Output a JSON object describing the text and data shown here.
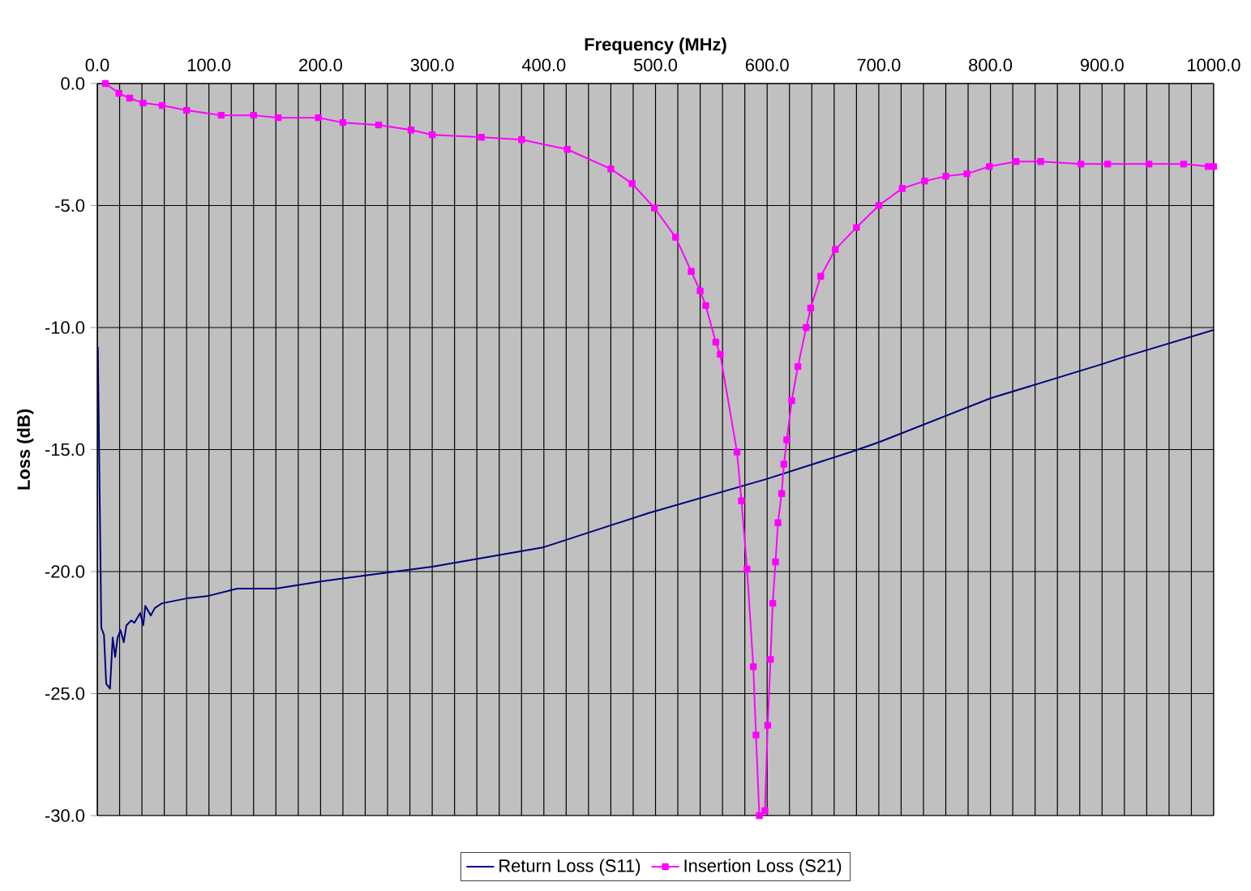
{
  "chart_data": {
    "type": "line",
    "xlabel": "Frequency (MHz)",
    "ylabel": "Loss (dB)",
    "xlim": [
      0,
      1000
    ],
    "ylim": [
      -30,
      0
    ],
    "xticks": [
      {
        "value": 0,
        "label": "0.0"
      },
      {
        "value": 20,
        "label": null
      },
      {
        "value": 40,
        "label": null
      },
      {
        "value": 60,
        "label": null
      },
      {
        "value": 80,
        "label": null
      },
      {
        "value": 100,
        "label": "100.0"
      },
      {
        "value": 120,
        "label": null
      },
      {
        "value": 140,
        "label": null
      },
      {
        "value": 160,
        "label": null
      },
      {
        "value": 180,
        "label": null
      },
      {
        "value": 200,
        "label": "200.0"
      },
      {
        "value": 220,
        "label": null
      },
      {
        "value": 240,
        "label": null
      },
      {
        "value": 260,
        "label": null
      },
      {
        "value": 280,
        "label": null
      },
      {
        "value": 300,
        "label": "300.0"
      },
      {
        "value": 320,
        "label": null
      },
      {
        "value": 340,
        "label": null
      },
      {
        "value": 360,
        "label": null
      },
      {
        "value": 380,
        "label": null
      },
      {
        "value": 400,
        "label": "400.0"
      },
      {
        "value": 420,
        "label": null
      },
      {
        "value": 440,
        "label": null
      },
      {
        "value": 460,
        "label": null
      },
      {
        "value": 480,
        "label": null
      },
      {
        "value": 500,
        "label": "500.0"
      },
      {
        "value": 520,
        "label": null
      },
      {
        "value": 540,
        "label": null
      },
      {
        "value": 560,
        "label": null
      },
      {
        "value": 580,
        "label": null
      },
      {
        "value": 600,
        "label": "600.0"
      },
      {
        "value": 620,
        "label": null
      },
      {
        "value": 640,
        "label": null
      },
      {
        "value": 660,
        "label": null
      },
      {
        "value": 680,
        "label": null
      },
      {
        "value": 700,
        "label": "700.0"
      },
      {
        "value": 720,
        "label": null
      },
      {
        "value": 740,
        "label": null
      },
      {
        "value": 760,
        "label": null
      },
      {
        "value": 780,
        "label": null
      },
      {
        "value": 800,
        "label": "800.0"
      },
      {
        "value": 820,
        "label": null
      },
      {
        "value": 840,
        "label": null
      },
      {
        "value": 860,
        "label": null
      },
      {
        "value": 880,
        "label": null
      },
      {
        "value": 900,
        "label": "900.0"
      },
      {
        "value": 920,
        "label": null
      },
      {
        "value": 940,
        "label": null
      },
      {
        "value": 960,
        "label": null
      },
      {
        "value": 980,
        "label": null
      },
      {
        "value": 1000,
        "label": "1000.0"
      }
    ],
    "yticks": [
      {
        "value": -30,
        "label": "-30.0"
      },
      {
        "value": -25,
        "label": "-25.0"
      },
      {
        "value": -20,
        "label": "-20.0"
      },
      {
        "value": -15,
        "label": "-15.0"
      },
      {
        "value": -10,
        "label": "-10.0"
      },
      {
        "value": -5,
        "label": "-5.0"
      },
      {
        "value": 0,
        "label": "0.0"
      }
    ],
    "grid": true,
    "legend": "bottom",
    "line_style": "solid",
    "series": [
      {
        "name": "Return Loss (S11)",
        "color": "#000080",
        "marker": "none",
        "x": [
          0.5,
          3.6,
          6,
          8,
          11.4,
          13.8,
          16,
          18.2,
          20.8,
          23.7,
          26.1,
          30.5,
          33.2,
          38.4,
          41.2,
          43,
          47.9,
          51.4,
          58,
          80,
          99,
          125.5,
          160,
          201,
          250,
          300,
          400,
          494,
          600,
          675,
          700,
          800,
          900,
          920,
          1000
        ],
        "values": [
          -10.8,
          -22.3,
          -22.6,
          -24.6,
          -24.8,
          -22.7,
          -23.5,
          -22.7,
          -22.4,
          -22.9,
          -22.2,
          -22.0,
          -22.1,
          -21.7,
          -22.2,
          -21.4,
          -21.8,
          -21.5,
          -21.3,
          -21.1,
          -21.0,
          -20.7,
          -20.7,
          -20.4,
          -20.1,
          -19.8,
          -19.0,
          -17.6,
          -16.2,
          -15.1,
          -14.7,
          -12.9,
          -11.5,
          -11.2,
          -10.1
        ]
      },
      {
        "name": "Insertion Loss (S21)",
        "color": "#ff00ff",
        "marker": "square",
        "x": [
          7.3,
          19.4,
          29,
          41,
          58,
          80,
          111,
          140,
          162,
          198,
          220,
          252,
          281,
          300,
          344,
          380,
          421,
          460,
          479,
          499,
          518,
          532,
          540,
          545,
          554,
          558,
          573,
          577,
          582,
          587.6,
          590,
          593,
          598,
          600.5,
          603,
          605,
          607.5,
          609.7,
          613,
          615,
          617.6,
          622,
          627.5,
          635,
          639,
          648,
          661,
          680,
          700,
          721,
          741,
          760,
          779,
          799,
          823,
          845,
          881,
          905,
          942,
          973,
          995,
          1000
        ],
        "values": [
          0.0,
          -0.4,
          -0.6,
          -0.8,
          -0.9,
          -1.1,
          -1.3,
          -1.3,
          -1.4,
          -1.4,
          -1.6,
          -1.7,
          -1.9,
          -2.1,
          -2.2,
          -2.3,
          -2.7,
          -3.5,
          -4.1,
          -5.1,
          -6.3,
          -7.7,
          -8.5,
          -9.1,
          -10.6,
          -11.1,
          -15.1,
          -17.1,
          -19.9,
          -23.9,
          -26.7,
          -30.0,
          -29.8,
          -26.3,
          -23.6,
          -21.3,
          -19.6,
          -18.0,
          -16.8,
          -15.6,
          -14.6,
          -13.0,
          -11.6,
          -10.0,
          -9.2,
          -7.9,
          -6.8,
          -5.9,
          -5.0,
          -4.3,
          -4.0,
          -3.8,
          -3.7,
          -3.4,
          -3.2,
          -3.2,
          -3.3,
          -3.3,
          -3.3,
          -3.3,
          -3.4,
          -3.4
        ]
      }
    ]
  }
}
